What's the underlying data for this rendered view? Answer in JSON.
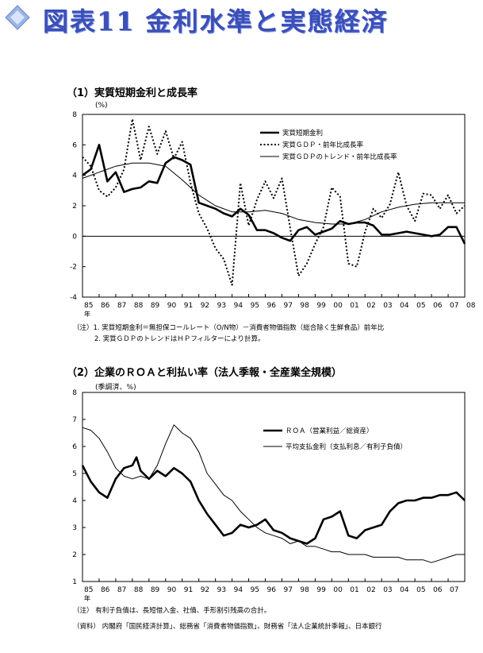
{
  "page_title": "図表11 金利水準と実態経済",
  "chart_data": [
    {
      "type": "line",
      "title": "（1）実質短期金利と成長率",
      "unit_label": "(%)",
      "ylim": [
        -4,
        8
      ],
      "yticks": [
        "-4",
        "-2",
        "0",
        "2",
        "4",
        "6",
        "8"
      ],
      "xlim": [
        1985,
        2008
      ],
      "xticks": [
        "85",
        "86",
        "87",
        "88",
        "89",
        "90",
        "91",
        "92",
        "93",
        "94",
        "95",
        "96",
        "97",
        "98",
        "99",
        "00",
        "01",
        "02",
        "03",
        "04",
        "05",
        "06",
        "07",
        "08"
      ],
      "x_year_suffix": "年",
      "grid": false,
      "legend_position": "top-right",
      "series": [
        {
          "name": "実質短期金利",
          "style": "solid-thick",
          "x": [
            1985,
            1985.5,
            1986,
            1986.5,
            1987,
            1987.5,
            1988,
            1988.5,
            1989,
            1989.5,
            1990,
            1990.5,
            1991,
            1991.5,
            1992,
            1992.5,
            1993,
            1993.5,
            1994,
            1994.5,
            1995,
            1995.5,
            1996,
            1996.5,
            1997,
            1997.5,
            1998,
            1998.5,
            1999,
            1999.5,
            2000,
            2000.5,
            2001,
            2001.5,
            2002,
            2002.5,
            2003,
            2003.5,
            2004,
            2004.5,
            2005,
            2005.5,
            2006,
            2006.5,
            2007,
            2007.5,
            2008
          ],
          "y": [
            4.0,
            4.4,
            6.0,
            3.6,
            4.2,
            2.9,
            3.1,
            3.2,
            3.6,
            3.5,
            4.8,
            5.2,
            5.0,
            4.7,
            2.2,
            2.0,
            1.8,
            1.5,
            1.3,
            1.8,
            1.4,
            0.4,
            0.4,
            0.2,
            -0.1,
            -0.3,
            0.4,
            0.6,
            0.1,
            0.3,
            0.5,
            1.0,
            0.8,
            0.9,
            0.9,
            0.7,
            0.1,
            0.1,
            0.2,
            0.3,
            0.2,
            0.1,
            0.0,
            0.1,
            0.6,
            0.6,
            -0.5
          ]
        },
        {
          "name": "実質ＧＤＰ・前年比成長率",
          "style": "dotted",
          "x": [
            1985,
            1985.5,
            1986,
            1986.5,
            1987,
            1987.5,
            1988,
            1988.5,
            1989,
            1989.5,
            1990,
            1990.5,
            1991,
            1991.5,
            1992,
            1992.5,
            1993,
            1993.5,
            1994,
            1994.5,
            1995,
            1995.5,
            1996,
            1996.5,
            1997,
            1997.5,
            1998,
            1998.5,
            1999,
            1999.5,
            2000,
            2000.5,
            2001,
            2001.5,
            2002,
            2002.5,
            2003,
            2003.5,
            2004,
            2004.5,
            2005,
            2005.5,
            2006,
            2006.5,
            2007,
            2007.5,
            2008
          ],
          "y": [
            5.2,
            4.6,
            3.0,
            2.6,
            3.2,
            4.4,
            7.7,
            5.0,
            7.2,
            5.4,
            6.9,
            5.1,
            6.2,
            3.5,
            1.5,
            0.5,
            -0.8,
            -1.5,
            -3.2,
            3.5,
            0.7,
            2.4,
            3.6,
            2.5,
            3.8,
            0.5,
            -2.6,
            -1.8,
            -0.5,
            0.6,
            3.2,
            2.6,
            -1.8,
            -2.0,
            0.3,
            1.8,
            1.2,
            2.1,
            4.2,
            2.0,
            1.0,
            2.8,
            2.7,
            1.8,
            2.7,
            1.5,
            2.0
          ]
        },
        {
          "name": "実質ＧＤＰのトレンド・前年比成長率",
          "style": "solid-thin",
          "x": [
            1985,
            1986,
            1987,
            1988,
            1989,
            1990,
            1991,
            1992,
            1993,
            1994,
            1995,
            1996,
            1997,
            1998,
            1999,
            2000,
            2001,
            2002,
            2003,
            2004,
            2005,
            2006,
            2007,
            2008
          ],
          "y": [
            3.8,
            4.2,
            4.6,
            4.8,
            4.8,
            4.6,
            3.7,
            2.7,
            2.0,
            1.6,
            1.6,
            1.7,
            1.5,
            1.1,
            0.9,
            0.8,
            0.8,
            1.1,
            1.6,
            1.9,
            2.1,
            2.2,
            2.2,
            2.2
          ]
        }
      ],
      "notes": [
        "（注）1. 実質短期金利＝無担保コールレート（O/N物）－消費者物価指数（総合除く生鮮食品）前年比",
        "2. 実質ＧＤＰのトレンドはＨＰフィルターにより計算。"
      ]
    },
    {
      "type": "line",
      "title": "（2）企業のＲＯＡと利払い率（法人季報・全産業全規模）",
      "unit_label": "(季調済、%)",
      "ylim": [
        1,
        8
      ],
      "yticks": [
        "1",
        "2",
        "3",
        "4",
        "5",
        "6",
        "7",
        "8"
      ],
      "xlim": [
        1985,
        2008
      ],
      "xticks": [
        "85",
        "86",
        "87",
        "88",
        "89",
        "90",
        "91",
        "92",
        "93",
        "94",
        "95",
        "96",
        "97",
        "98",
        "99",
        "00",
        "01",
        "02",
        "03",
        "04",
        "05",
        "06",
        "07"
      ],
      "x_year_suffix": "年",
      "grid": false,
      "legend_position": "top-right",
      "series": [
        {
          "name": "ＲＯＡ（営業利益／総資産）",
          "style": "solid-thick",
          "x": [
            1985,
            1985.5,
            1986,
            1986.5,
            1987,
            1987.5,
            1988,
            1988.25,
            1988.5,
            1989,
            1989.5,
            1990,
            1990.5,
            1991,
            1991.5,
            1992,
            1992.5,
            1993,
            1993.5,
            1994,
            1994.5,
            1995,
            1995.5,
            1996,
            1996.5,
            1997,
            1997.5,
            1998,
            1998.5,
            1999,
            1999.5,
            2000,
            2000.5,
            2001,
            2001.5,
            2002,
            2002.5,
            2003,
            2003.5,
            2004,
            2004.5,
            2005,
            2005.5,
            2006,
            2006.5,
            2007,
            2007.5,
            2008
          ],
          "y": [
            5.3,
            4.7,
            4.3,
            4.1,
            4.8,
            5.2,
            5.3,
            5.6,
            5.1,
            4.8,
            5.1,
            4.9,
            5.2,
            5.0,
            4.7,
            4.0,
            3.5,
            3.1,
            2.7,
            2.8,
            3.1,
            3.0,
            3.1,
            3.3,
            2.9,
            2.8,
            2.6,
            2.5,
            2.4,
            2.6,
            3.3,
            3.4,
            3.6,
            2.7,
            2.6,
            2.9,
            3.0,
            3.1,
            3.6,
            3.9,
            4.0,
            4.0,
            4.1,
            4.1,
            4.2,
            4.2,
            4.3,
            4.0
          ]
        },
        {
          "name": "平均支払金利（支払利息／有利子負債）",
          "style": "solid-thin",
          "x": [
            1985,
            1985.5,
            1986,
            1986.5,
            1987,
            1987.5,
            1988,
            1988.5,
            1989,
            1989.5,
            1990,
            1990.5,
            1991,
            1991.5,
            1992,
            1992.5,
            1993,
            1993.5,
            1994,
            1994.5,
            1995,
            1995.5,
            1996,
            1996.5,
            1997,
            1997.5,
            1998,
            1998.5,
            1999,
            1999.5,
            2000,
            2000.5,
            2001,
            2001.5,
            2002,
            2002.5,
            2003,
            2003.5,
            2004,
            2004.5,
            2005,
            2005.5,
            2006,
            2006.5,
            2007,
            2007.5,
            2008
          ],
          "y": [
            6.7,
            6.6,
            6.3,
            5.8,
            5.2,
            4.9,
            4.8,
            4.9,
            4.8,
            5.3,
            6.1,
            6.8,
            6.5,
            6.3,
            5.8,
            5.0,
            4.6,
            4.2,
            4.0,
            3.6,
            3.3,
            3.0,
            2.8,
            2.7,
            2.6,
            2.4,
            2.5,
            2.3,
            2.3,
            2.2,
            2.1,
            2.1,
            2.0,
            2.0,
            2.0,
            1.9,
            1.9,
            1.9,
            1.9,
            1.8,
            1.8,
            1.8,
            1.7,
            1.8,
            1.9,
            2.0,
            2.0
          ]
        }
      ],
      "notes": [
        "（注） 有利子負債は、長短借入金、社債、手形割引残高の合計。",
        "（資料） 内閣府「国民経済計算」、総務省「消費者物価指数」、財務省「法人企業統計季報」、日本銀行"
      ]
    }
  ]
}
